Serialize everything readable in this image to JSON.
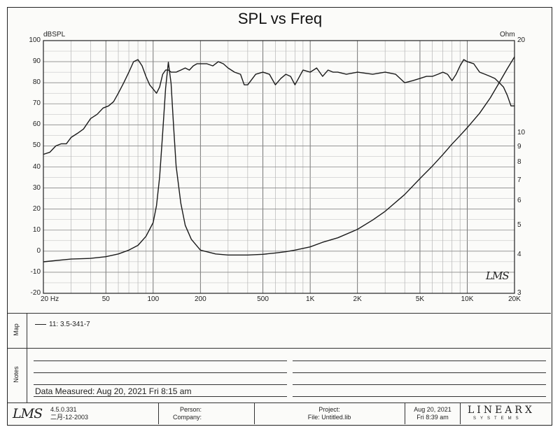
{
  "chart_data": {
    "type": "line",
    "title": "SPL vs Freq",
    "y_left_unit": "dBSPL",
    "y_right_unit": "Ohm",
    "x_scale": "log",
    "xlim": [
      20,
      20000
    ],
    "ylim": [
      -20,
      100
    ],
    "y_right_scale": "log",
    "y_right_lim": [
      3,
      20
    ],
    "grid": true,
    "x_tick_labels": [
      "20 Hz",
      "50",
      "100",
      "200",
      "500",
      "1K",
      "2K",
      "5K",
      "10K",
      "20K"
    ],
    "x_tick_values": [
      20,
      50,
      100,
      200,
      500,
      1000,
      2000,
      5000,
      10000,
      20000
    ],
    "y_left_ticks": [
      100,
      90,
      80,
      70,
      60,
      50,
      40,
      30,
      20,
      10,
      0,
      -10,
      -20
    ],
    "y_right_ticks": [
      20,
      10,
      9,
      8,
      7,
      6,
      5,
      4,
      3
    ],
    "series": [
      {
        "axis": "left",
        "x": [
          20,
          22,
          24,
          26,
          28,
          30,
          33,
          36,
          40,
          44,
          48,
          52,
          56,
          60,
          65,
          70,
          75,
          80,
          85,
          90,
          95,
          100,
          105,
          110,
          115,
          120,
          125,
          130,
          140,
          150,
          160,
          170,
          180,
          190,
          200,
          220,
          240,
          260,
          280,
          300,
          330,
          360,
          380,
          400,
          450,
          500,
          550,
          600,
          650,
          700,
          750,
          800,
          900,
          1000,
          1100,
          1200,
          1300,
          1400,
          1500,
          1700,
          2000,
          2500,
          3000,
          3500,
          4000,
          4500,
          5000,
          5500,
          6000,
          6500,
          7000,
          7500,
          8000,
          8500,
          9000,
          9500,
          10000,
          11000,
          12000,
          13000,
          14000,
          15000,
          16000,
          17000,
          18000,
          19000,
          20000
        ],
        "values": [
          46,
          47,
          50,
          51,
          51,
          54,
          56,
          58,
          63,
          65,
          68,
          69,
          71,
          75,
          80,
          85,
          90,
          91,
          88,
          83,
          79,
          77,
          75,
          78,
          84,
          86,
          86,
          85,
          85,
          86,
          87,
          86,
          88,
          89,
          89,
          89,
          88,
          90,
          89,
          87,
          85,
          84,
          79,
          79,
          84,
          85,
          84,
          79,
          82,
          84,
          83,
          79,
          86,
          85,
          87,
          83,
          86,
          85,
          85,
          84,
          85,
          84,
          85,
          84,
          80,
          81,
          82,
          83,
          83,
          84,
          85,
          84,
          81,
          84,
          88,
          91,
          90,
          89,
          85,
          84,
          83,
          82,
          80,
          78,
          74,
          69,
          69
        ]
      },
      {
        "axis": "right",
        "x": [
          20,
          30,
          40,
          50,
          60,
          70,
          80,
          90,
          100,
          105,
          110,
          115,
          120,
          125,
          130,
          135,
          140,
          150,
          160,
          175,
          200,
          250,
          300,
          400,
          500,
          600,
          700,
          800,
          1000,
          1200,
          1500,
          2000,
          2500,
          3000,
          4000,
          5000,
          6000,
          7000,
          8000,
          9000,
          10000,
          12000,
          14000,
          16000,
          18000,
          20000
        ],
        "values": [
          3.8,
          3.88,
          3.9,
          3.95,
          4.03,
          4.15,
          4.3,
          4.6,
          5.1,
          5.8,
          7.2,
          10.0,
          14.0,
          17.0,
          14.5,
          10.5,
          7.8,
          5.9,
          5.0,
          4.5,
          4.15,
          4.03,
          4.0,
          4.0,
          4.02,
          4.06,
          4.1,
          4.15,
          4.25,
          4.4,
          4.55,
          4.85,
          5.2,
          5.55,
          6.3,
          7.1,
          7.8,
          8.5,
          9.2,
          9.8,
          10.4,
          11.6,
          13.0,
          14.6,
          16.2,
          17.7
        ]
      }
    ]
  },
  "map": {
    "side_label": "Map",
    "entry": "11: 3.5-341-7"
  },
  "notes": {
    "side_label": "Notes",
    "measured": "Data Measured: Aug 20, 2021  Fri  8:15 am"
  },
  "footer": {
    "logo": "LMS",
    "version": "4.5.0.331",
    "version_date": "二月-12-2003",
    "person_label": "Person:",
    "company_label": "Company:",
    "project_label": "Project:",
    "file_label": "File: Untitled.lib",
    "date": "Aug 20, 2021",
    "time": "Fri  8:39 am",
    "brand": "LINEARX",
    "brand_sub": "SYSTEMS"
  },
  "watermark": "LMS"
}
